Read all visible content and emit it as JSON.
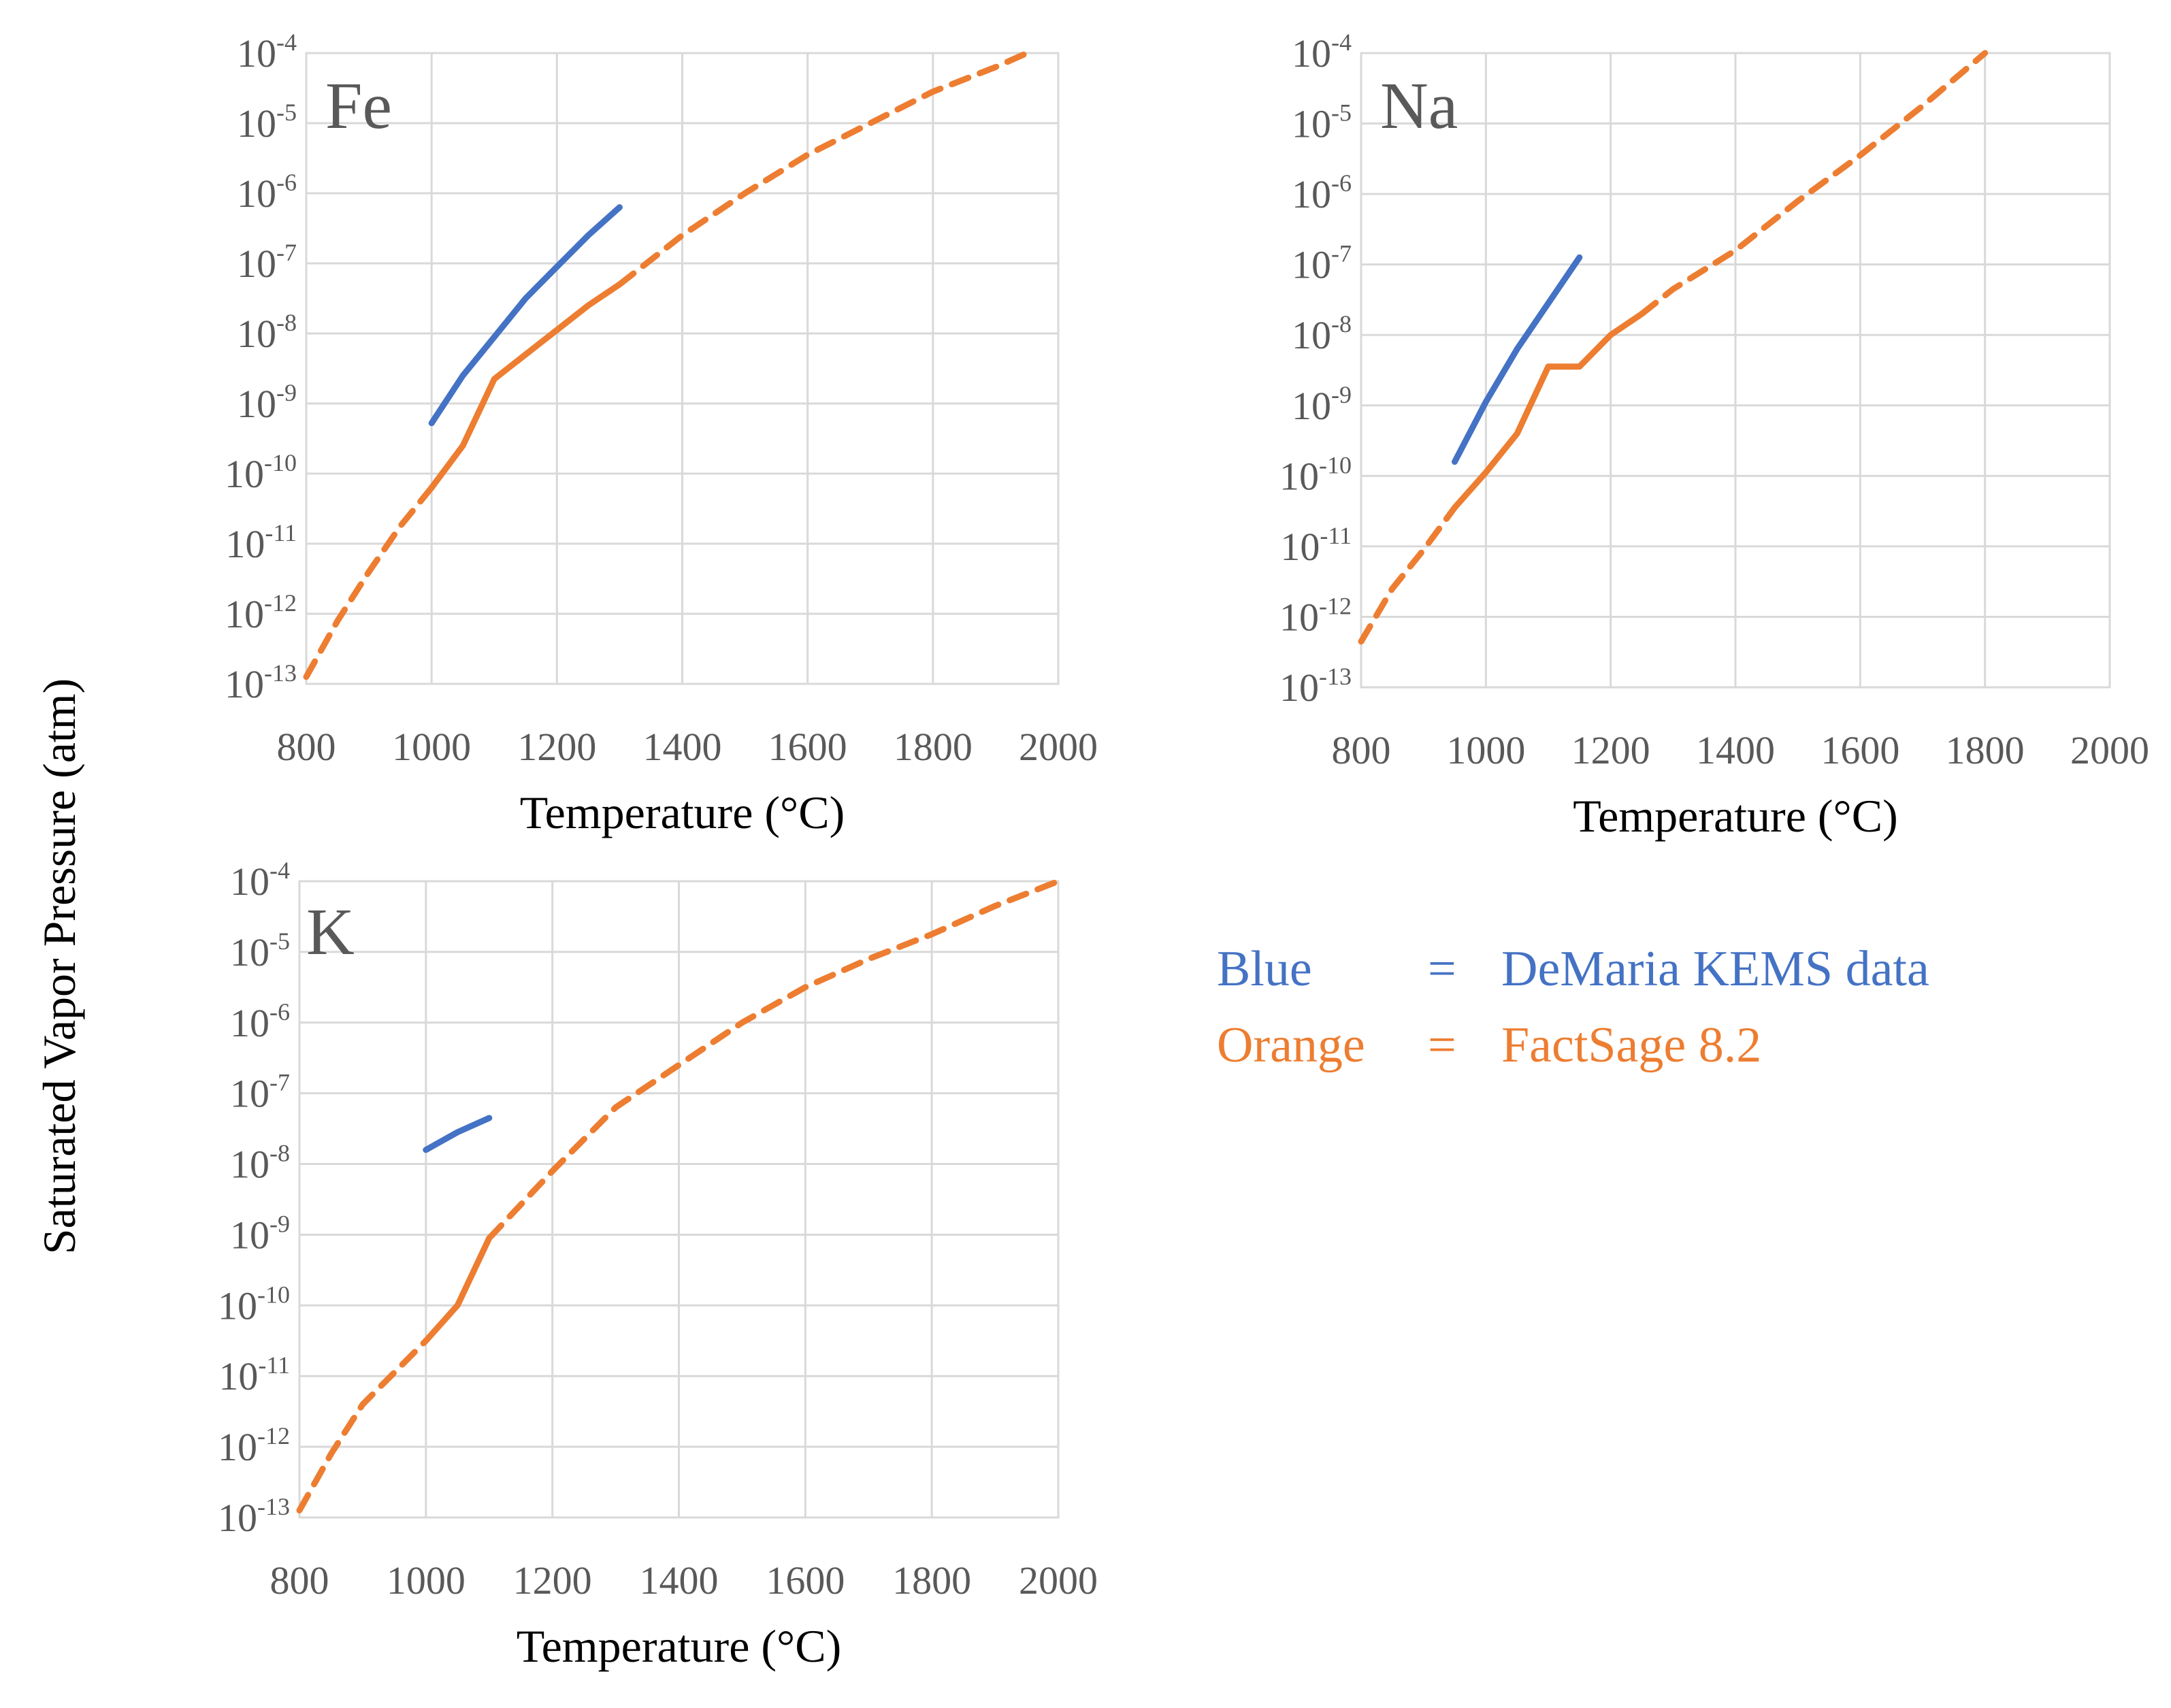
{
  "figure": {
    "y_axis_title": "Saturated Vapor Pressure (atm)",
    "colors": {
      "blue": "#4472c4",
      "orange": "#ed7d31",
      "grid": "#d9d9d9",
      "text": "#595959"
    }
  },
  "legend": [
    {
      "color_word": "Blue",
      "eq": "=",
      "description": "DeMaria KEMS data",
      "color": "#4472c4"
    },
    {
      "color_word": "Orange",
      "eq": "=",
      "description": "FactSage 8.2",
      "color": "#ed7d31"
    }
  ],
  "chart_data": [
    {
      "type": "line",
      "panel": "Fe",
      "xlabel": "Temperature (°C)",
      "ylabel": "Saturated Vapor Pressure (atm)",
      "xlim": [
        800,
        2000
      ],
      "x_ticks": [
        800,
        1000,
        1200,
        1400,
        1600,
        1800,
        2000
      ],
      "y_scale": "log",
      "ylim_exp": [
        -13,
        -4
      ],
      "y_tick_base": "10",
      "y_tick_exponents": [
        "-4",
        "-5",
        "-6",
        "-7",
        "-8",
        "-9",
        "-10",
        "-11",
        "-12",
        "-13"
      ],
      "grid": true,
      "series": [
        {
          "name": "DeMaria KEMS data",
          "color": "#4472c4",
          "style": "solid",
          "x": [
            1000,
            1050,
            1100,
            1150,
            1200,
            1250,
            1300
          ],
          "log_y": [
            -9.28,
            -8.6,
            -8.05,
            -7.5,
            -7.05,
            -6.6,
            -6.2
          ]
        },
        {
          "name": "FactSage 8.2",
          "color": "#ed7d31",
          "style": "solid",
          "x": [
            1000,
            1050,
            1100,
            1150,
            1200,
            1250,
            1300
          ],
          "log_y": [
            -10.2,
            -9.6,
            -8.65,
            -8.3,
            -7.95,
            -7.6,
            -7.3
          ]
        },
        {
          "name": "FactSage 8.2 (extrapolated)",
          "color": "#ed7d31",
          "style": "dashed",
          "x": [
            800,
            850,
            900,
            950,
            1000
          ],
          "log_y": [
            -12.9,
            -12.1,
            -11.4,
            -10.75,
            -10.2
          ]
        },
        {
          "name": "FactSage 8.2 (extrapolated)",
          "color": "#ed7d31",
          "style": "dashed",
          "x": [
            1300,
            1400,
            1500,
            1600,
            1700,
            1800,
            1900,
            1950
          ],
          "log_y": [
            -7.3,
            -6.6,
            -6.0,
            -5.45,
            -5.0,
            -4.55,
            -4.2,
            -4.0
          ]
        }
      ]
    },
    {
      "type": "line",
      "panel": "Na",
      "xlabel": "Temperature (°C)",
      "ylabel": "Saturated Vapor Pressure (atm)",
      "xlim": [
        800,
        2000
      ],
      "x_ticks": [
        800,
        1000,
        1200,
        1400,
        1600,
        1800,
        2000
      ],
      "y_scale": "log",
      "ylim_exp": [
        -13,
        -4
      ],
      "y_tick_base": "10",
      "y_tick_exponents": [
        "-4",
        "-5",
        "-6",
        "-7",
        "-8",
        "-9",
        "-10",
        "-11",
        "-12",
        "-13"
      ],
      "grid": true,
      "series": [
        {
          "name": "DeMaria KEMS data",
          "color": "#4472c4",
          "style": "solid",
          "x": [
            950,
            1000,
            1050,
            1100,
            1150
          ],
          "log_y": [
            -9.8,
            -8.95,
            -8.2,
            -7.55,
            -6.9
          ]
        },
        {
          "name": "FactSage 8.2",
          "color": "#ed7d31",
          "style": "solid",
          "x": [
            950,
            1000,
            1050,
            1100,
            1150,
            1200,
            1250
          ],
          "log_y": [
            -10.45,
            -9.95,
            -9.4,
            -8.45,
            -8.45,
            -8.0,
            -7.7
          ]
        },
        {
          "name": "FactSage 8.2 (extrapolated)",
          "color": "#ed7d31",
          "style": "dashed",
          "x": [
            800,
            850,
            900,
            950
          ],
          "log_y": [
            -12.35,
            -11.6,
            -11.05,
            -10.45
          ]
        },
        {
          "name": "FactSage 8.2 (extrapolated)",
          "color": "#ed7d31",
          "style": "dashed",
          "x": [
            1250,
            1300,
            1400,
            1500,
            1600,
            1700,
            1800
          ],
          "log_y": [
            -7.7,
            -7.35,
            -6.8,
            -6.1,
            -5.45,
            -4.75,
            -4.0
          ]
        }
      ]
    },
    {
      "type": "line",
      "panel": "K",
      "xlabel": "Temperature (°C)",
      "ylabel": "Saturated Vapor Pressure (atm)",
      "xlim": [
        800,
        2000
      ],
      "x_ticks": [
        800,
        1000,
        1200,
        1400,
        1600,
        1800,
        2000
      ],
      "y_scale": "log",
      "ylim_exp": [
        -13,
        -4
      ],
      "y_tick_base": "10",
      "y_tick_exponents": [
        "-4",
        "-5",
        "-6",
        "-7",
        "-8",
        "-9",
        "-10",
        "-11",
        "-12",
        "-13"
      ],
      "grid": true,
      "series": [
        {
          "name": "DeMaria KEMS data",
          "color": "#4472c4",
          "style": "solid",
          "x": [
            1000,
            1050,
            1100
          ],
          "log_y": [
            -7.8,
            -7.55,
            -7.35
          ]
        },
        {
          "name": "FactSage 8.2",
          "color": "#ed7d31",
          "style": "solid",
          "x": [
            1000,
            1050,
            1100
          ],
          "log_y": [
            -10.5,
            -10.0,
            -9.05
          ]
        },
        {
          "name": "FactSage 8.2 (extrapolated)",
          "color": "#ed7d31",
          "style": "dashed",
          "x": [
            800,
            850,
            900,
            950,
            1000
          ],
          "log_y": [
            -12.9,
            -12.1,
            -11.4,
            -10.95,
            -10.5
          ]
        },
        {
          "name": "FactSage 8.2 (extrapolated)",
          "color": "#ed7d31",
          "style": "dashed",
          "x": [
            1100,
            1200,
            1300,
            1400,
            1500,
            1600,
            1700,
            1800,
            1900,
            2000
          ],
          "log_y": [
            -9.05,
            -8.1,
            -7.2,
            -6.6,
            -6.0,
            -5.5,
            -5.1,
            -4.75,
            -4.35,
            -4.0
          ]
        }
      ]
    }
  ]
}
